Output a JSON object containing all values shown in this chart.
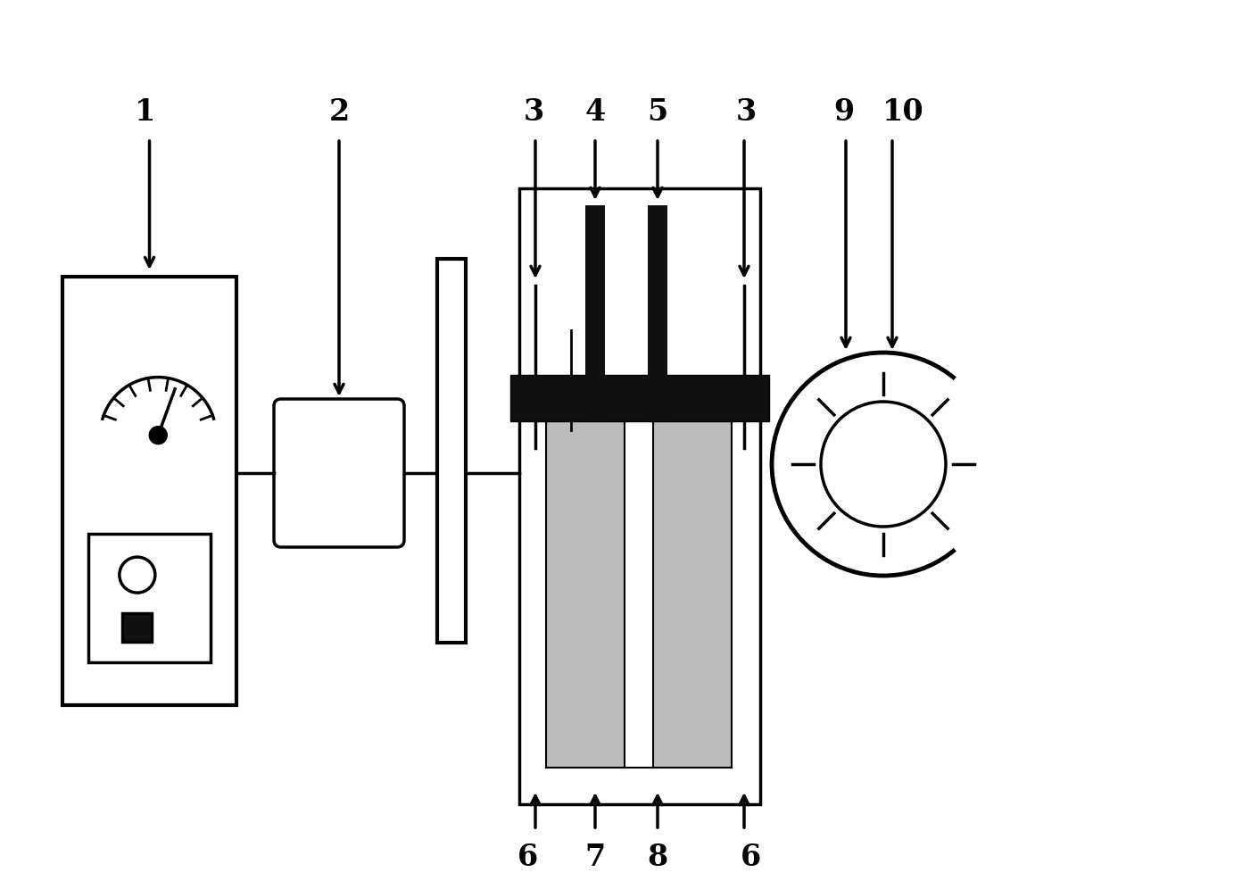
{
  "bg_color": "#ffffff",
  "line_color": "#000000",
  "dark_fill": "#111111",
  "gray_fill": "#999999",
  "figsize": [
    13.92,
    9.96
  ],
  "dpi": 100
}
